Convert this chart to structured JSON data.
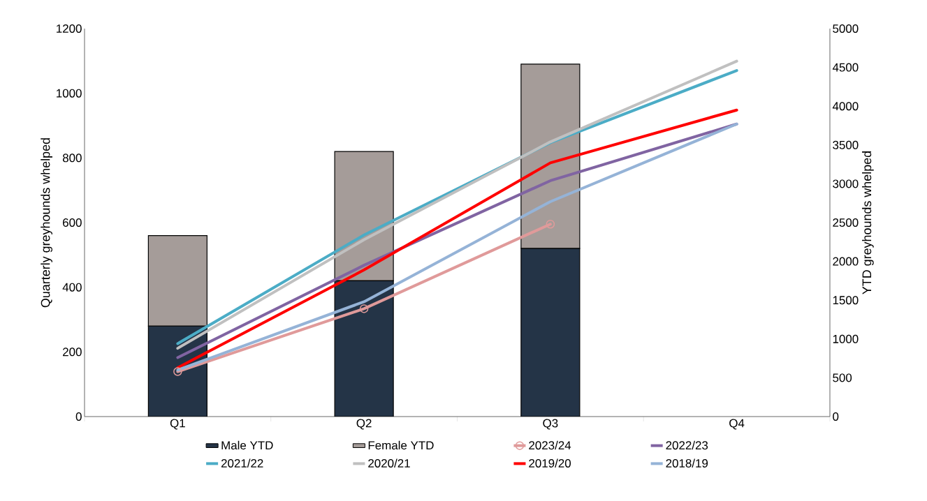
{
  "chart_data": {
    "type": "bar",
    "stacked": true,
    "categories": [
      "Q1",
      "Q2",
      "Q3",
      "Q4"
    ],
    "ylabel": "Quarterly greyhounds whelped",
    "y2label": "YTD greyhounds whelped",
    "ylim": [
      0,
      1200
    ],
    "yticks": [
      0,
      200,
      400,
      600,
      800,
      1000,
      1200
    ],
    "y2lim": [
      0,
      5000
    ],
    "y2ticks": [
      0,
      500,
      1000,
      1500,
      2000,
      2500,
      3000,
      3500,
      4000,
      4500,
      5000
    ],
    "legend": "bottom",
    "series": [
      {
        "name": "Male YTD",
        "color": "#243447",
        "values": [
          280,
          420,
          520,
          null
        ]
      },
      {
        "name": "Female YTD",
        "color": "#a59c99",
        "values": [
          280,
          400,
          570,
          null
        ]
      },
      {
        "name": "2023/24",
        "type": "line",
        "axis": "y2",
        "marker": "circle",
        "color": "#e09a9a",
        "values": [
          580,
          1390,
          2480,
          null
        ]
      },
      {
        "name": "2022/23",
        "type": "line",
        "axis": "y2",
        "color": "#8064a2",
        "values": [
          760,
          1950,
          3040,
          3770
        ]
      },
      {
        "name": "2021/22",
        "type": "line",
        "axis": "y2",
        "color": "#4bacc6",
        "values": [
          940,
          2340,
          3530,
          4460
        ]
      },
      {
        "name": "2020/21",
        "type": "line",
        "axis": "y2",
        "color": "#c0c0c0",
        "values": [
          880,
          2280,
          3540,
          4580
        ]
      },
      {
        "name": "2019/20",
        "type": "line",
        "axis": "y2",
        "color": "#ff0000",
        "values": [
          630,
          1890,
          3270,
          3950
        ]
      },
      {
        "name": "2018/19",
        "type": "line",
        "axis": "y2",
        "color": "#95b3d7",
        "values": [
          600,
          1480,
          2770,
          3770
        ]
      }
    ]
  }
}
